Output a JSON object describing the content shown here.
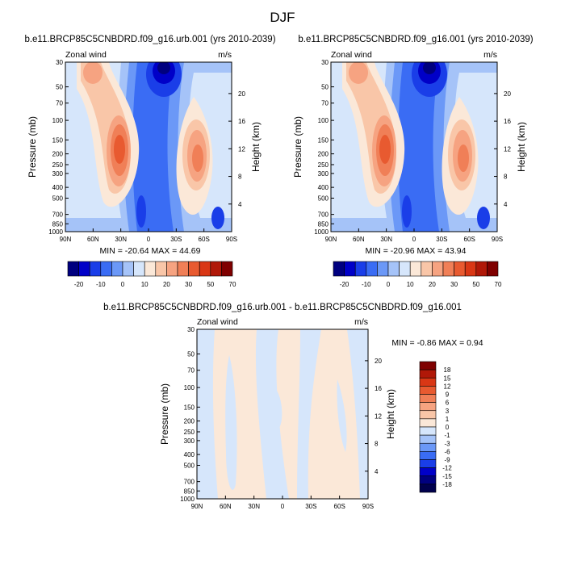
{
  "figure_title": "DJF",
  "chart_data": [
    {
      "type": "heatmap",
      "title": "b.e11.BRCP85C5CNBDRD.f09_g16.urb.001 (yrs 2010-2039)",
      "left_label": "Zonal wind",
      "right_label": "m/s",
      "xlabel": "",
      "ylabel": "Pressure (mb)",
      "y2label": "Height (km)",
      "x_ticks": [
        "90N",
        "60N",
        "30N",
        "0",
        "30S",
        "60S",
        "90S"
      ],
      "y_ticks": [
        "30",
        "50",
        "70",
        "100",
        "150",
        "200",
        "250",
        "300",
        "400",
        "500",
        "700",
        "850",
        "1000"
      ],
      "y2_ticks": [
        "20",
        "16",
        "12",
        "8",
        "4"
      ],
      "stats_text": "MIN = -20.64   MAX =  44.69",
      "min": -20.64,
      "max": 44.69,
      "features": [
        {
          "lat": 30,
          "p": 180,
          "value": 44.69
        },
        {
          "lat": -55,
          "p": 210,
          "value": 38
        },
        {
          "lat": 72,
          "p": 50,
          "value": 22
        },
        {
          "lat": -15,
          "p": 30,
          "value": -20.64
        }
      ]
    },
    {
      "type": "heatmap",
      "title": "b.e11.BRCP85C5CNBDRD.f09_g16.001 (yrs 2010-2039)",
      "left_label": "Zonal wind",
      "right_label": "m/s",
      "xlabel": "",
      "ylabel": "Pressure (mb)",
      "y2label": "Height (km)",
      "x_ticks": [
        "90N",
        "60N",
        "30N",
        "0",
        "30S",
        "60S",
        "90S"
      ],
      "y_ticks": [
        "30",
        "50",
        "70",
        "100",
        "150",
        "200",
        "250",
        "300",
        "400",
        "500",
        "700",
        "850",
        "1000"
      ],
      "y2_ticks": [
        "20",
        "16",
        "12",
        "8",
        "4"
      ],
      "stats_text": "MIN = -20.96   MAX =  43.94",
      "min": -20.96,
      "max": 43.94,
      "features": [
        {
          "lat": 30,
          "p": 180,
          "value": 43.94
        },
        {
          "lat": -55,
          "p": 210,
          "value": 37
        },
        {
          "lat": 72,
          "p": 50,
          "value": 22
        },
        {
          "lat": -15,
          "p": 30,
          "value": -20.96
        }
      ]
    },
    {
      "type": "heatmap",
      "title": "b.e11.BRCP85C5CNBDRD.f09_g16.urb.001 - b.e11.BRCP85C5CNBDRD.f09_g16.001",
      "left_label": "Zonal wind",
      "right_label": "m/s",
      "xlabel": "",
      "ylabel": "Pressure (mb)",
      "y2label": "Height (km)",
      "x_ticks": [
        "90N",
        "60N",
        "30N",
        "0",
        "30S",
        "60S",
        "90S"
      ],
      "y_ticks": [
        "30",
        "50",
        "70",
        "100",
        "150",
        "200",
        "250",
        "300",
        "400",
        "500",
        "700",
        "850",
        "1000"
      ],
      "y2_ticks": [
        "20",
        "16",
        "12",
        "8",
        "4"
      ],
      "stats_text": "MIN =  -0.86  MAX =   0.94",
      "min": -0.86,
      "max": 0.94
    }
  ],
  "colorbar_main": {
    "labels": [
      "-20",
      "-10",
      "0",
      "10",
      "20",
      "30",
      "50",
      "70"
    ],
    "colors": [
      "#00007f",
      "#0000c8",
      "#1a3ee8",
      "#3a6cf4",
      "#6b98f7",
      "#a5c3f8",
      "#d6e6fb",
      "#fbe8d8",
      "#f9c6a8",
      "#f6a381",
      "#f07f57",
      "#e85a30",
      "#d93715",
      "#b01808",
      "#7f0000"
    ]
  },
  "colorbar_diff": {
    "labels": [
      "18",
      "15",
      "12",
      "9",
      "6",
      "3",
      "1",
      "0",
      "-1",
      "-3",
      "-6",
      "-9",
      "-12",
      "-15",
      "-18"
    ],
    "colors": [
      "#7f0000",
      "#b01808",
      "#d93715",
      "#e85a30",
      "#f07f57",
      "#f6a381",
      "#f9c6a8",
      "#fbe8d8",
      "#d6e6fb",
      "#a5c3f8",
      "#6b98f7",
      "#3a6cf4",
      "#1a3ee8",
      "#0000c8",
      "#00007f",
      "#00004d"
    ]
  }
}
